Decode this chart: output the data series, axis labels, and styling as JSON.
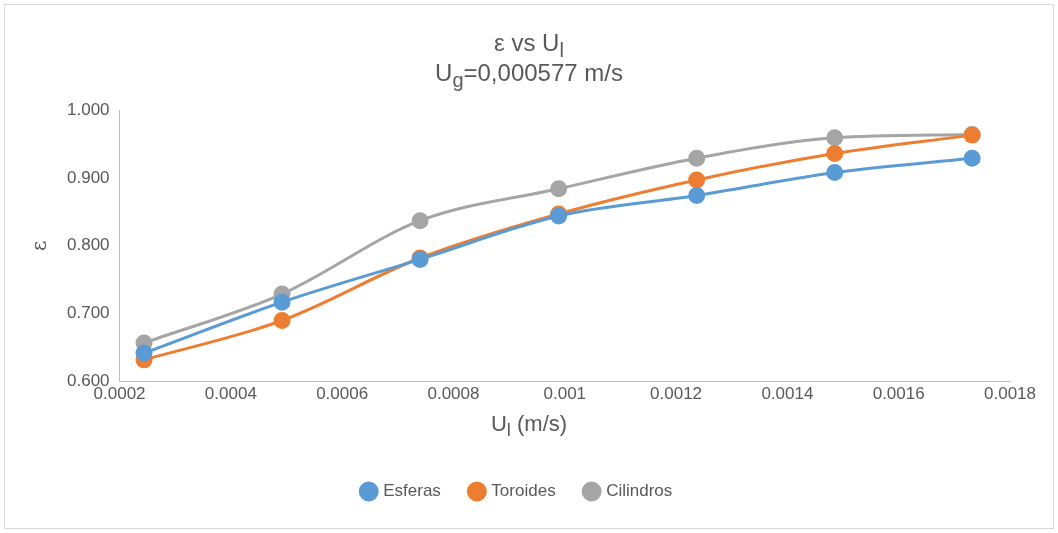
{
  "chart_data": {
    "type": "line",
    "title": "ε vs U$_{l}$",
    "subtitle": "U$_{g}$=0,000577 m/s",
    "xlabel": "U$_{l}$ (m/s)",
    "ylabel": "ε",
    "x": [
      0.000244,
      0.000492,
      0.00074,
      0.000989,
      0.001237,
      0.001485,
      0.001732
    ],
    "series": [
      {
        "name": "Esferas",
        "color": "#5b9bd5",
        "values": [
          0.642,
          0.717,
          0.78,
          0.844,
          0.874,
          0.908,
          0.929
        ]
      },
      {
        "name": "Toroides",
        "color": "#ed7d31",
        "values": [
          0.632,
          0.69,
          0.782,
          0.847,
          0.897,
          0.936,
          0.963
        ]
      },
      {
        "name": "Cilindros",
        "color": "#a5a5a5",
        "values": [
          0.657,
          0.729,
          0.837,
          0.884,
          0.929,
          0.959,
          0.964
        ]
      }
    ],
    "xlim": [
      0.0002,
      0.0018
    ],
    "xticks": [
      0.0002,
      0.0004,
      0.0006,
      0.0008,
      0.001,
      0.0012,
      0.0014,
      0.0016,
      0.0018
    ],
    "ylim": [
      0.6,
      1.0
    ],
    "yticks": [
      {
        "value": 0.6,
        "label": "0.600"
      },
      {
        "value": 0.7,
        "label": "0.700"
      },
      {
        "value": 0.8,
        "label": "0.800"
      },
      {
        "value": 0.9,
        "label": "0.900"
      },
      {
        "value": 1.0,
        "label": "1.000"
      }
    ],
    "grid": false,
    "legend": "bottom",
    "marker": "circle",
    "line_style": "solid"
  }
}
